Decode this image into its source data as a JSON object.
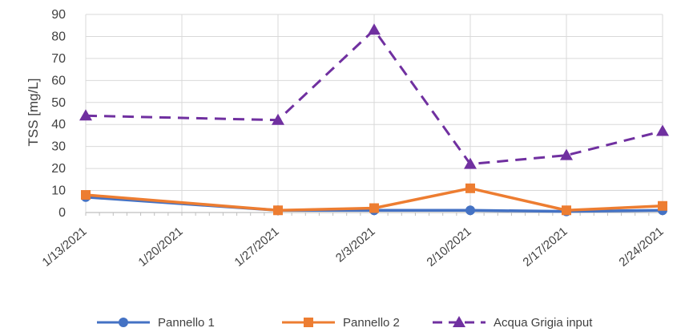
{
  "chart_data": {
    "type": "line",
    "title": "",
    "xlabel": "",
    "ylabel": "TSS [mg/L]",
    "x_tick_labels": [
      "1/13/2021",
      "1/20/2021",
      "1/27/2021",
      "2/3/2021",
      "2/10/2021",
      "2/17/2021",
      "2/24/2021"
    ],
    "x": [
      "1/13/2021",
      "1/27/2021",
      "2/3/2021",
      "2/10/2021",
      "2/17/2021",
      "2/24/2021"
    ],
    "y_ticks": [
      0,
      10,
      20,
      30,
      40,
      50,
      60,
      70,
      80,
      90
    ],
    "ylim": [
      0,
      90
    ],
    "grid": true,
    "legend_position": "bottom",
    "series": [
      {
        "name": "Pannello 1",
        "color": "#4472C4",
        "marker": "circle",
        "dash": false,
        "values": [
          7,
          1,
          1,
          1,
          0.5,
          1
        ]
      },
      {
        "name": "Pannello 2",
        "color": "#ED7D31",
        "marker": "square",
        "dash": false,
        "values": [
          8,
          1,
          2,
          11,
          1,
          3
        ]
      },
      {
        "name": "Acqua Grigia input",
        "color": "#7030A0",
        "marker": "triangle",
        "dash": true,
        "values": [
          44,
          42,
          83,
          22,
          26,
          37
        ]
      }
    ]
  }
}
